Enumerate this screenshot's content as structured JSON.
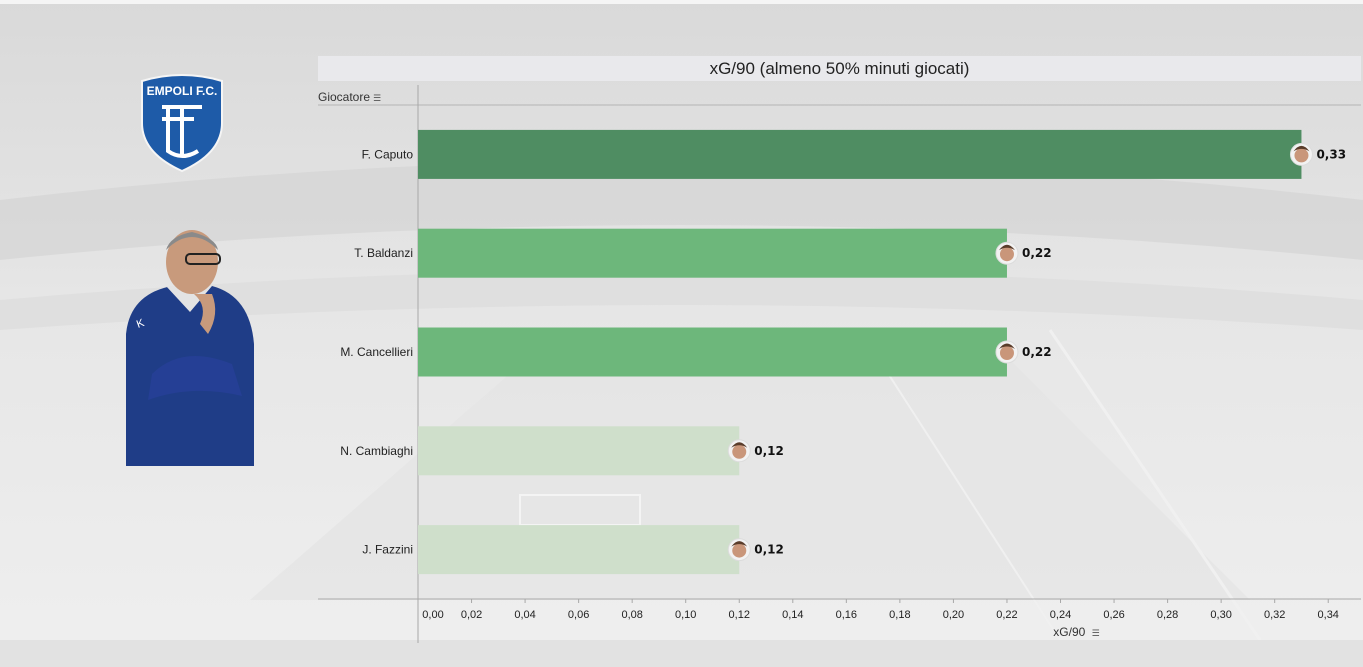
{
  "header": {
    "club": "EMPOLI F.C.",
    "title": "xG/90 (almeno 50% minuti giocati)",
    "row_header": "Giocatore",
    "sort_icon": "sort-descending-icon"
  },
  "colors": {
    "bar_high": "#4f8d62",
    "bar_mid": "#6db77b",
    "bar_low": "#cfdfcb",
    "logo_blue": "#1e5ba8",
    "axis": "#999999"
  },
  "chart_data": {
    "type": "bar",
    "orientation": "horizontal",
    "title": "xG/90 (almeno 50% minuti giocati)",
    "ylabel": "Giocatore",
    "xlabel": "xG/90",
    "categories": [
      "F. Caputo",
      "T. Baldanzi",
      "M. Cancellieri",
      "N. Cambiaghi",
      "J. Fazzini"
    ],
    "values": [
      0.33,
      0.22,
      0.22,
      0.12,
      0.12
    ],
    "value_labels": [
      "0,33",
      "0,22",
      "0,22",
      "0,12",
      "0,12"
    ],
    "xlim": [
      0,
      0.35
    ],
    "ticks": [
      0,
      0.02,
      0.04,
      0.06,
      0.08,
      0.1,
      0.12,
      0.14,
      0.16,
      0.18,
      0.2,
      0.22,
      0.24,
      0.26,
      0.28,
      0.3,
      0.32,
      0.34
    ],
    "tick_labels": [
      "0,00",
      "0,02",
      "0,04",
      "0,06",
      "0,08",
      "0,10",
      "0,12",
      "0,14",
      "0,16",
      "0,18",
      "0,20",
      "0,22",
      "0,24",
      "0,26",
      "0,28",
      "0,30",
      "0,32",
      "0,34"
    ],
    "grid": false,
    "legend": "none"
  }
}
